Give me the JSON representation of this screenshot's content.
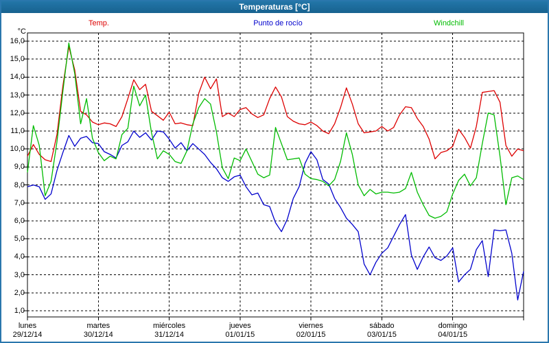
{
  "window": {
    "title": "Temperaturas [°C]"
  },
  "legend": [
    {
      "label": "Temp.",
      "color": "#dd0000"
    },
    {
      "label": "Punto de rocío",
      "color": "#0000cc"
    },
    {
      "label": "Windchill",
      "color": "#00bb00"
    }
  ],
  "axis": {
    "y_unit": "°C",
    "y_tick_labels": [
      "16,0",
      "15,0",
      "14,0",
      "13,0",
      "12,0",
      "11,0",
      "10,0",
      "9,0",
      "8,0",
      "7,0",
      "6,0",
      "5,0",
      "4,0",
      "3,0",
      "2,0",
      "1,0"
    ],
    "days": [
      {
        "name": "lunes",
        "date": "29/12/14"
      },
      {
        "name": "martes",
        "date": "30/12/14"
      },
      {
        "name": "miércoles",
        "date": "31/12/14"
      },
      {
        "name": "jueves",
        "date": "01/01/15"
      },
      {
        "name": "viernes",
        "date": "02/01/15"
      },
      {
        "name": "sábado",
        "date": "03/01/15"
      },
      {
        "name": "domingo",
        "date": "04/01/15"
      }
    ]
  },
  "chart_data": {
    "type": "line",
    "title": "Temperaturas [°C]",
    "ylabel": "°C",
    "ylim": [
      1,
      16
    ],
    "y_gridline_step": 1,
    "grid": "dashed",
    "legend_position": "top",
    "x_unit": "hours",
    "x_step_hours": 2,
    "x_days": [
      "lunes 29/12/14",
      "martes 30/12/14",
      "miércoles 31/12/14",
      "jueves 01/01/15",
      "viernes 02/01/15",
      "sábado 03/01/15",
      "domingo 04/01/15"
    ],
    "series": [
      {
        "name": "Temp.",
        "color": "#dd0000",
        "values": [
          9.6,
          10.25,
          9.7,
          9.4,
          9.3,
          10.8,
          13.5,
          15.7,
          14.4,
          12.1,
          11.9,
          11.5,
          11.35,
          11.45,
          11.4,
          11.25,
          11.8,
          12.8,
          13.85,
          13.3,
          13.6,
          12.1,
          11.85,
          11.6,
          12.05,
          11.4,
          11.45,
          11.35,
          11.3,
          13.1,
          14.0,
          13.35,
          13.9,
          11.8,
          12.0,
          11.8,
          12.2,
          12.3,
          11.95,
          11.75,
          11.9,
          12.8,
          13.45,
          12.9,
          11.8,
          11.55,
          11.4,
          11.35,
          11.5,
          11.3,
          11.0,
          10.85,
          11.4,
          12.3,
          13.4,
          12.5,
          11.4,
          10.9,
          10.95,
          11.0,
          11.25,
          11.0,
          11.2,
          11.9,
          12.35,
          12.3,
          11.7,
          11.25,
          10.55,
          9.45,
          9.8,
          9.9,
          10.15,
          11.1,
          10.65,
          10.05,
          11.25,
          13.15,
          13.2,
          13.25,
          12.6,
          10.2,
          9.6,
          10.0,
          9.9
        ]
      },
      {
        "name": "Punto de rocío",
        "color": "#0000cc",
        "values": [
          7.9,
          8.0,
          7.9,
          7.2,
          7.5,
          8.8,
          9.8,
          10.75,
          10.15,
          10.6,
          10.7,
          10.35,
          10.3,
          9.85,
          9.7,
          9.5,
          10.2,
          10.4,
          11.0,
          10.65,
          10.9,
          10.5,
          11.0,
          10.95,
          10.55,
          10.05,
          10.35,
          9.9,
          10.3,
          10.0,
          9.7,
          9.25,
          8.9,
          8.4,
          8.2,
          8.45,
          8.55,
          7.9,
          7.45,
          7.55,
          6.9,
          6.8,
          5.9,
          5.4,
          6.1,
          7.25,
          7.9,
          9.2,
          9.85,
          9.4,
          8.3,
          8.05,
          7.25,
          6.75,
          6.15,
          5.8,
          5.4,
          3.6,
          3.0,
          3.7,
          4.2,
          4.5,
          5.15,
          5.8,
          6.35,
          4.1,
          3.3,
          4.0,
          4.55,
          3.95,
          3.8,
          4.05,
          4.5,
          2.6,
          3.0,
          3.3,
          4.4,
          4.9,
          2.9,
          5.5,
          5.45,
          5.5,
          4.2,
          1.6,
          3.2
        ]
      },
      {
        "name": "Windchill",
        "color": "#00bb00",
        "values": [
          8.7,
          11.3,
          10.2,
          7.4,
          8.2,
          10.4,
          13.2,
          15.9,
          14.2,
          11.4,
          12.8,
          10.6,
          9.8,
          9.35,
          9.6,
          9.45,
          10.8,
          11.15,
          13.5,
          12.4,
          13.0,
          10.9,
          9.45,
          9.9,
          9.7,
          9.3,
          9.2,
          9.9,
          11.4,
          12.3,
          12.8,
          12.5,
          10.95,
          8.95,
          8.35,
          9.5,
          9.35,
          10.0,
          9.3,
          8.6,
          8.4,
          8.55,
          11.2,
          10.3,
          9.4,
          9.45,
          9.5,
          8.6,
          8.35,
          8.3,
          8.2,
          7.95,
          8.3,
          9.3,
          10.9,
          9.7,
          8.0,
          7.4,
          7.75,
          7.5,
          7.6,
          7.6,
          7.55,
          7.6,
          7.8,
          8.7,
          7.6,
          6.9,
          6.3,
          6.15,
          6.25,
          6.5,
          7.5,
          8.25,
          8.6,
          7.95,
          8.4,
          10.3,
          12.0,
          11.9,
          9.6,
          6.9,
          8.4,
          8.5,
          8.3
        ]
      }
    ]
  }
}
